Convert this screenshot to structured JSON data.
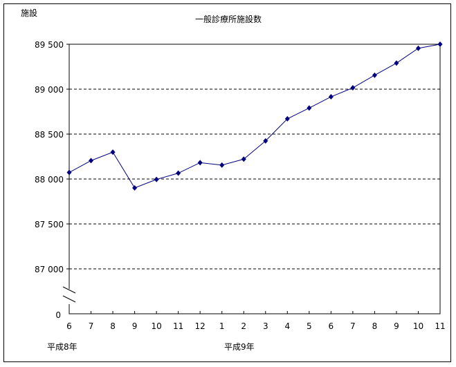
{
  "chart_data": {
    "type": "line",
    "title": "一般診療所施設数",
    "ylabel": "施設",
    "ylim": [
      87000,
      89500
    ],
    "y_axis_break": true,
    "y_ticks": [
      "0",
      "87 000",
      "87 500",
      "88 000",
      "88 500",
      "89 000",
      "89 500"
    ],
    "y_tick_values": [
      87000,
      87500,
      88000,
      88500,
      89000,
      89500
    ],
    "categories": [
      "6",
      "7",
      "8",
      "9",
      "10",
      "11",
      "12",
      "1",
      "2",
      "3",
      "4",
      "5",
      "6",
      "7",
      "8",
      "9",
      "10",
      "11"
    ],
    "era_labels": [
      {
        "label": "平成8年",
        "at": "6"
      },
      {
        "label": "平成9年",
        "at": "2"
      }
    ],
    "grid": "horizontal dashed",
    "series": [
      {
        "values": [
          88073,
          88205,
          88299,
          87901,
          87995,
          88065,
          88182,
          88155,
          88221,
          88424,
          88670,
          88790,
          88915,
          89015,
          89155,
          89290,
          89455,
          89500
        ],
        "color": "#000080"
      }
    ]
  }
}
